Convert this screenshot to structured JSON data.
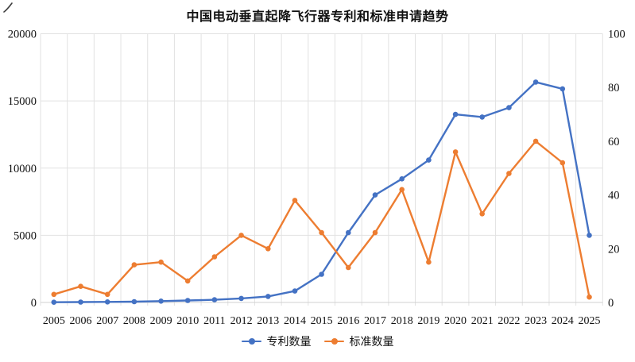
{
  "title": "中国电动垂直起降飞行器专利和标准申请趋势",
  "chart_data": {
    "type": "line",
    "title": "中国电动垂直起降飞行器专利和标准申请趋势",
    "categories": [
      "2005",
      "2006",
      "2007",
      "2008",
      "2009",
      "2010",
      "2011",
      "2012",
      "2013",
      "2014",
      "2015",
      "2016",
      "2017",
      "2018",
      "2019",
      "2020",
      "2021",
      "2022",
      "2023",
      "2024",
      "2025"
    ],
    "series": [
      {
        "name": "专利数量",
        "axis": "left",
        "color": "#4472C4",
        "values": [
          20,
          30,
          40,
          60,
          100,
          150,
          200,
          300,
          450,
          850,
          2100,
          5200,
          8000,
          9200,
          10600,
          14000,
          13800,
          14500,
          16400,
          15900,
          5000
        ]
      },
      {
        "name": "标准数量",
        "axis": "right",
        "color": "#ED7D31",
        "values": [
          3,
          6,
          3,
          14,
          15,
          8,
          17,
          25,
          20,
          38,
          26,
          13,
          26,
          42,
          15,
          56,
          33,
          48,
          60,
          52,
          2
        ]
      }
    ],
    "left_axis": {
      "min": 0,
      "max": 20000,
      "ticks": [
        0,
        5000,
        10000,
        15000,
        20000
      ],
      "tick_labels": [
        "0",
        "5000",
        "10000",
        "15000",
        "20000"
      ]
    },
    "right_axis": {
      "min": 0,
      "max": 100,
      "ticks": [
        0,
        20,
        40,
        60,
        80,
        100
      ],
      "tick_labels": [
        "0",
        "20",
        "40",
        "60",
        "80",
        "100"
      ]
    },
    "grid": true,
    "legend_position": "bottom"
  },
  "legend": {
    "items": [
      {
        "label": "专利数量",
        "color": "#4472C4"
      },
      {
        "label": "标准数量",
        "color": "#ED7D31"
      }
    ]
  },
  "colors": {
    "patents_line": "#4472C4",
    "standards_line": "#ED7D31",
    "gridline": "#E2E2E2",
    "axis_line": "#D0D0D0",
    "text": "#111111"
  }
}
